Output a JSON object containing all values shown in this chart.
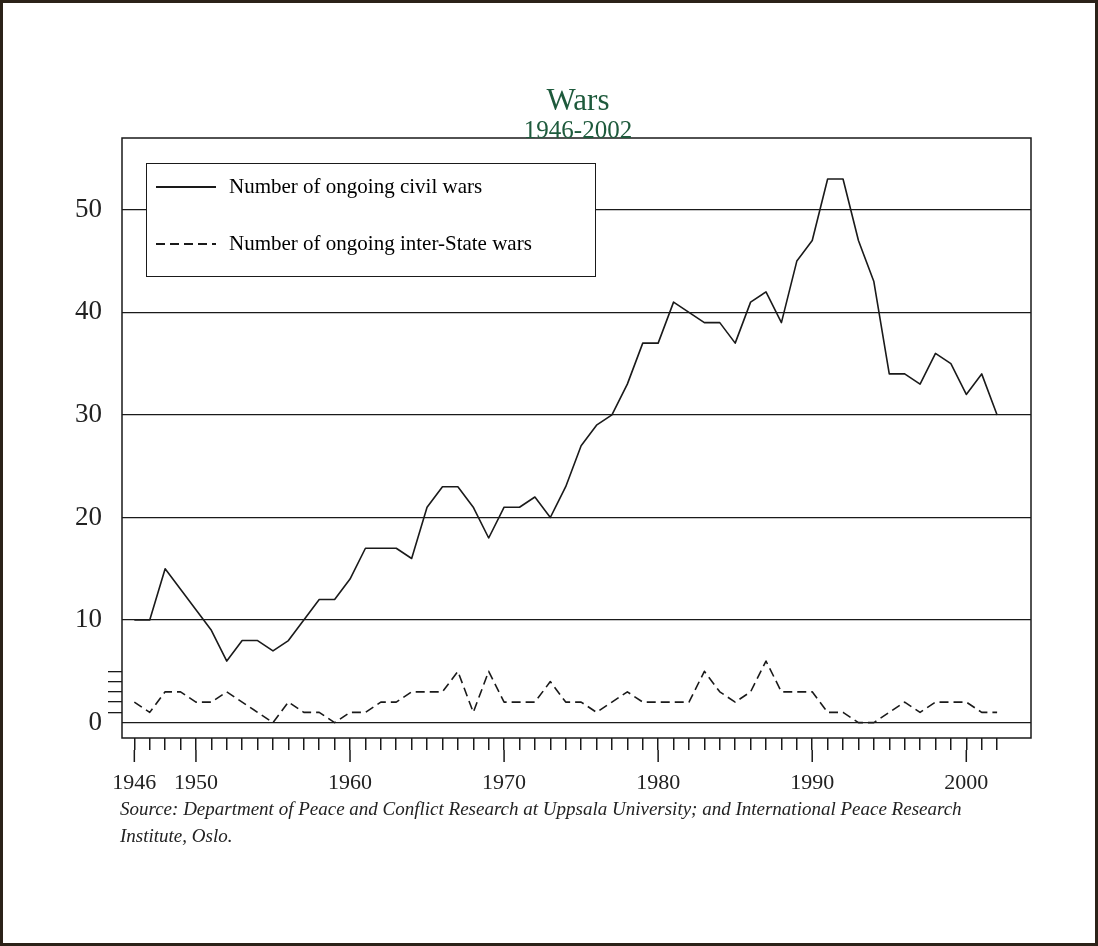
{
  "chart_data": {
    "type": "line",
    "title": "Wars",
    "subtitle": "1946-2002",
    "annotations": [
      "Source: Department of Peace and Conflict Research at Uppsala University; and International Peace Research Institute, Oslo."
    ],
    "x": [
      1946,
      1947,
      1948,
      1949,
      1950,
      1951,
      1952,
      1953,
      1954,
      1955,
      1956,
      1957,
      1958,
      1959,
      1960,
      1961,
      1962,
      1963,
      1964,
      1965,
      1966,
      1967,
      1968,
      1969,
      1970,
      1971,
      1972,
      1973,
      1974,
      1975,
      1976,
      1977,
      1978,
      1979,
      1980,
      1981,
      1982,
      1983,
      1984,
      1985,
      1986,
      1987,
      1988,
      1989,
      1990,
      1991,
      1992,
      1993,
      1994,
      1995,
      1996,
      1997,
      1998,
      1999,
      2000,
      2001,
      2002
    ],
    "series": [
      {
        "name": "Number of ongoing civil wars",
        "color": "#1a1a1a",
        "line_style": "solid",
        "values": [
          10,
          10,
          15,
          13,
          11,
          9,
          6,
          8,
          8,
          7,
          8,
          10,
          12,
          12,
          14,
          17,
          17,
          17,
          16,
          21,
          23,
          23,
          21,
          18,
          21,
          21,
          22,
          20,
          23,
          27,
          29,
          30,
          33,
          37,
          37,
          41,
          40,
          39,
          39,
          37,
          41,
          42,
          39,
          45,
          47,
          53,
          53,
          47,
          43,
          34,
          34,
          33,
          36,
          35,
          32,
          34,
          30
        ]
      },
      {
        "name": "Number of ongoing inter-State wars",
        "color": "#1a1a1a",
        "line_style": "dashed",
        "values": [
          2,
          1,
          3,
          3,
          2,
          2,
          3,
          2,
          1,
          0,
          2,
          1,
          1,
          0,
          1,
          1,
          2,
          2,
          3,
          3,
          3,
          5,
          1,
          5,
          2,
          2,
          2,
          4,
          2,
          2,
          1,
          2,
          3,
          2,
          2,
          2,
          2,
          5,
          3,
          2,
          3,
          6,
          3,
          3,
          3,
          1,
          1,
          0,
          0,
          1,
          2,
          1,
          2,
          2,
          2,
          1,
          1
        ]
      }
    ],
    "xlim": [
      1945.2,
      2004.2
    ],
    "xticks": [
      1946,
      {
        "value": 1947,
        "label": null
      },
      {
        "value": 1948,
        "label": null
      },
      {
        "value": 1949,
        "label": null
      },
      1950,
      {
        "value": 1951,
        "label": null
      },
      {
        "value": 1952,
        "label": null
      },
      {
        "value": 1953,
        "label": null
      },
      {
        "value": 1954,
        "label": null
      },
      {
        "value": 1955,
        "label": null
      },
      {
        "value": 1956,
        "label": null
      },
      {
        "value": 1957,
        "label": null
      },
      {
        "value": 1958,
        "label": null
      },
      {
        "value": 1959,
        "label": null
      },
      1960,
      {
        "value": 1961,
        "label": null
      },
      {
        "value": 1962,
        "label": null
      },
      {
        "value": 1963,
        "label": null
      },
      {
        "value": 1964,
        "label": null
      },
      {
        "value": 1965,
        "label": null
      },
      {
        "value": 1966,
        "label": null
      },
      {
        "value": 1967,
        "label": null
      },
      {
        "value": 1968,
        "label": null
      },
      {
        "value": 1969,
        "label": null
      },
      1970,
      {
        "value": 1971,
        "label": null
      },
      {
        "value": 1972,
        "label": null
      },
      {
        "value": 1973,
        "label": null
      },
      {
        "value": 1974,
        "label": null
      },
      {
        "value": 1975,
        "label": null
      },
      {
        "value": 1976,
        "label": null
      },
      {
        "value": 1977,
        "label": null
      },
      {
        "value": 1978,
        "label": null
      },
      {
        "value": 1979,
        "label": null
      },
      1980,
      {
        "value": 1981,
        "label": null
      },
      {
        "value": 1982,
        "label": null
      },
      {
        "value": 1983,
        "label": null
      },
      {
        "value": 1984,
        "label": null
      },
      {
        "value": 1985,
        "label": null
      },
      {
        "value": 1986,
        "label": null
      },
      {
        "value": 1987,
        "label": null
      },
      {
        "value": 1988,
        "label": null
      },
      {
        "value": 1989,
        "label": null
      },
      1990,
      {
        "value": 1991,
        "label": null
      },
      {
        "value": 1992,
        "label": null
      },
      {
        "value": 1993,
        "label": null
      },
      {
        "value": 1994,
        "label": null
      },
      {
        "value": 1995,
        "label": null
      },
      {
        "value": 1996,
        "label": null
      },
      {
        "value": 1997,
        "label": null
      },
      {
        "value": 1998,
        "label": null
      },
      {
        "value": 1999,
        "label": null
      },
      2000,
      {
        "value": 2001,
        "label": null
      },
      {
        "value": 2002,
        "label": null
      }
    ],
    "ylim": [
      -1.5,
      57
    ],
    "yticks": [
      0,
      {
        "value": 1,
        "label": null
      },
      {
        "value": 2,
        "label": null
      },
      {
        "value": 3,
        "label": null
      },
      {
        "value": 4,
        "label": null
      },
      {
        "value": 5,
        "label": null
      },
      10,
      20,
      30,
      40,
      50
    ],
    "grid": "y",
    "legend": "top left",
    "marker": "none"
  }
}
